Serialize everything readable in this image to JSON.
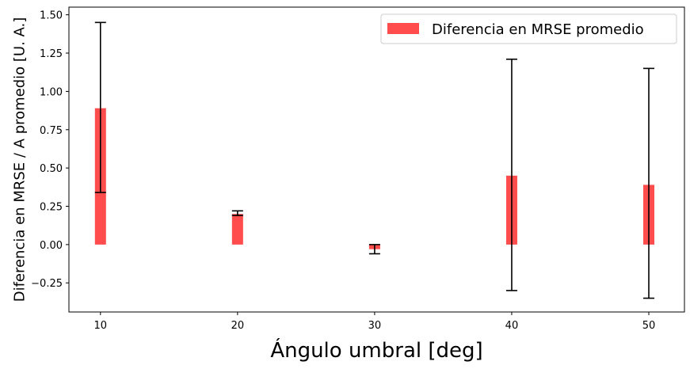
{
  "chart_data": {
    "type": "bar",
    "title": "",
    "xlabel": "Ángulo umbral [deg]",
    "ylabel": "Diferencia en MRSE / A promedio [U. A.]",
    "x": [
      10,
      20,
      30,
      40,
      50
    ],
    "x_tick_labels": [
      "10",
      "20",
      "30",
      "40",
      "50"
    ],
    "xlim": [
      7.7,
      52.6
    ],
    "ylim": [
      -0.44,
      1.55
    ],
    "y_ticks": [
      -0.25,
      0.0,
      0.25,
      0.5,
      0.75,
      1.0,
      1.25,
      1.5
    ],
    "y_tick_labels": [
      "−0.25",
      "0.00",
      "0.25",
      "0.50",
      "0.75",
      "1.00",
      "1.25",
      "1.50"
    ],
    "grid": false,
    "legend_position": "top-right",
    "series": [
      {
        "name": "Diferencia en MRSE promedio",
        "color": "#ff4c4c",
        "values": [
          0.89,
          0.2,
          -0.03,
          0.45,
          0.39
        ],
        "error_low": [
          0.34,
          0.19,
          -0.06,
          -0.3,
          -0.35
        ],
        "error_high": [
          1.45,
          0.22,
          0.0,
          1.21,
          1.15
        ]
      }
    ]
  }
}
